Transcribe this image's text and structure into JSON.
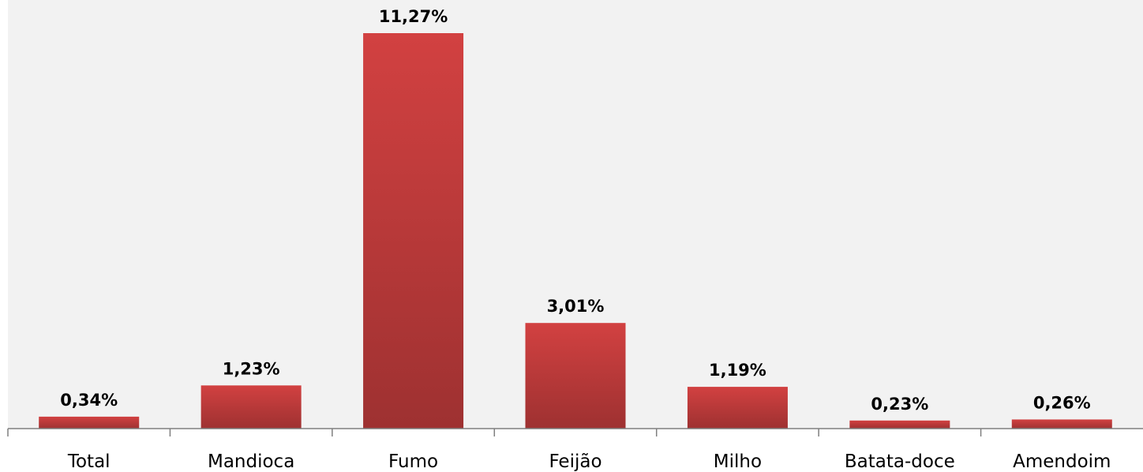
{
  "chart_data": {
    "type": "bar",
    "categories": [
      "Total",
      "Mandioca",
      "Fumo",
      "Feijão",
      "Milho",
      "Batata-doce",
      "Amendoim"
    ],
    "values": [
      0.34,
      1.23,
      11.27,
      3.01,
      1.19,
      0.23,
      0.26
    ],
    "value_labels": [
      "0,34%",
      "1,23%",
      "11,27%",
      "3,01%",
      "1,19%",
      "0,23%",
      "0,26%"
    ],
    "color": "#d24141"
  }
}
